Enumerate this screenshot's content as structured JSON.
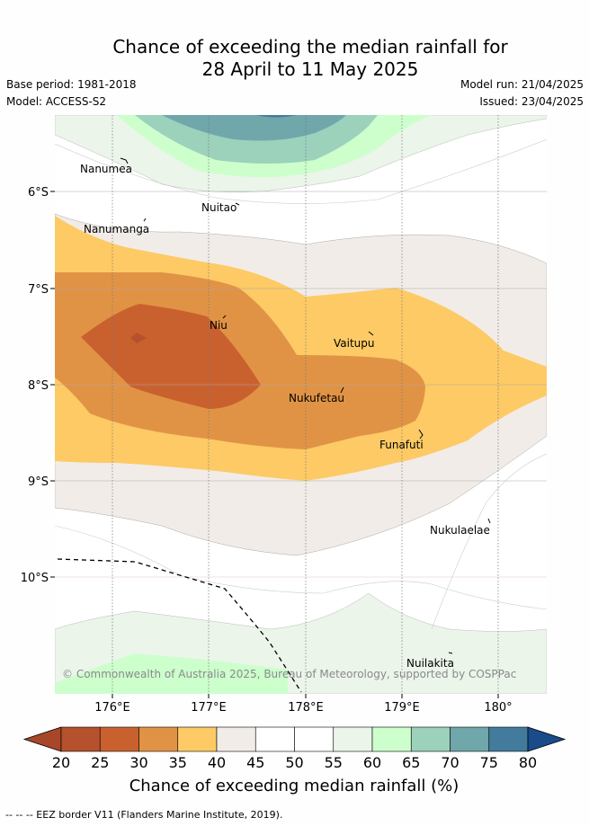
{
  "title": {
    "line1": "Chance of exceeding the median rainfall for",
    "line2": "28 April to 11 May 2025"
  },
  "meta": {
    "base_period": "Base period: 1981-2018",
    "model": "Model: ACCESS-S2",
    "model_run": "Model run: 21/04/2025",
    "issued": "Issued: 23/04/2025"
  },
  "map": {
    "lat_labels": [
      "6°S",
      "7°S",
      "8°S",
      "9°S",
      "10°S"
    ],
    "lon_labels": [
      "176°E",
      "177°E",
      "178°E",
      "179°E",
      "180°"
    ],
    "places": [
      "Nanumea",
      "Nuitao",
      "Nanumanga",
      "Niu",
      "Vaitupu",
      "Nukufetau",
      "Funafuti",
      "Nukulaelae",
      "Nuilakita"
    ],
    "copyright": "© Commonwealth of Australia 2025, Bureau of Meteorology, supported by COSPPac"
  },
  "colorbar": {
    "ticks": [
      "20",
      "25",
      "30",
      "35",
      "40",
      "45",
      "50",
      "55",
      "60",
      "65",
      "70",
      "75",
      "80"
    ],
    "colors": [
      "#a8462a",
      "#b5512c",
      "#c9612f",
      "#e19345",
      "#fdca65",
      "#f1ece7",
      "#ffffff",
      "#ffffff",
      "#ebf5ea",
      "#cdffcc",
      "#9cd1bc",
      "#6fa7aa",
      "#427b9c",
      "#1a4b8a"
    ],
    "label": "Chance of exceeding median rainfall (%)"
  },
  "footer": "--  --  -- EEZ border V11 (Flanders Marine Institute, 2019)."
}
